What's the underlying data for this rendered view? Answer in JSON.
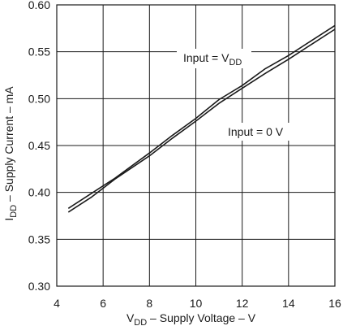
{
  "chart_data": {
    "type": "line",
    "xlabel": {
      "main": "V",
      "sub": "DD",
      "rest": " – Supply Voltage – V"
    },
    "ylabel": {
      "main": "I",
      "sub": "DD",
      "rest": " – Supply Current – mA"
    },
    "xlim": [
      4,
      16
    ],
    "ylim": [
      0.3,
      0.6
    ],
    "x_ticks": [
      4,
      6,
      8,
      10,
      12,
      14,
      16
    ],
    "x_tick_labels": [
      "4",
      "6",
      "8",
      "10",
      "12",
      "14",
      "16"
    ],
    "y_ticks": [
      0.3,
      0.35,
      0.4,
      0.45,
      0.5,
      0.55,
      0.6
    ],
    "y_tick_labels": [
      "0.30",
      "0.35",
      "0.40",
      "0.45",
      "0.50",
      "0.55",
      "0.60"
    ],
    "grid": true,
    "series": [
      {
        "name": "Input = VDD",
        "label_parts": {
          "main": "Input = V",
          "sub": "DD"
        },
        "color": "#1a1a1a",
        "points": [
          [
            4.5,
            0.383
          ],
          [
            5.5,
            0.399
          ],
          [
            6.5,
            0.415
          ],
          [
            8.0,
            0.442
          ],
          [
            9.0,
            0.461
          ],
          [
            10.0,
            0.479
          ],
          [
            11.0,
            0.499
          ],
          [
            12.0,
            0.514
          ],
          [
            13.0,
            0.532
          ],
          [
            14.0,
            0.546
          ],
          [
            15.0,
            0.562
          ],
          [
            16.0,
            0.578
          ]
        ]
      },
      {
        "name": "Input = 0 V",
        "label_parts": {
          "main": "Input = 0 V",
          "sub": ""
        },
        "color": "#1a1a1a",
        "points": [
          [
            4.5,
            0.379
          ],
          [
            5.5,
            0.395
          ],
          [
            6.5,
            0.414
          ],
          [
            8.0,
            0.439
          ],
          [
            9.0,
            0.458
          ],
          [
            10.0,
            0.476
          ],
          [
            11.0,
            0.495
          ],
          [
            12.0,
            0.511
          ],
          [
            13.0,
            0.527
          ],
          [
            14.0,
            0.542
          ],
          [
            15.0,
            0.558
          ],
          [
            16.0,
            0.574
          ]
        ]
      }
    ]
  }
}
